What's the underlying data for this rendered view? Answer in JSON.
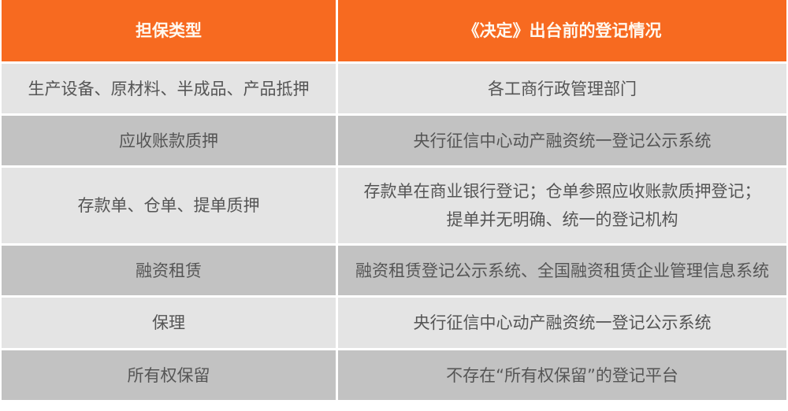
{
  "header": {
    "col1": "担保类型",
    "col2": "《决定》出台前的登记情况"
  },
  "colors": {
    "header": "#f76a20",
    "row_light": "#e4e4e4",
    "row_dark": "#c2c2c2"
  },
  "rows": [
    {
      "type": "生产设备、原材料、半成品、产品抵押",
      "registry": "各工商行政管理部门"
    },
    {
      "type": "应收账款质押",
      "registry": "央行征信中心动产融资统一登记公示系统"
    },
    {
      "type": "存款单、仓单、提单质押",
      "registry": "存款单在商业银行登记；仓单参照应收账款质押登记；",
      "registry2": "提单并无明确、统一的登记机构"
    },
    {
      "type": "融资租赁",
      "registry": "融资租赁登记公示系统、全国融资租赁企业管理信息系统"
    },
    {
      "type": "保理",
      "registry": "央行征信中心动产融资统一登记公示系统"
    },
    {
      "type": "所有权保留",
      "registry": "不存在“所有权保留”的登记平台"
    }
  ]
}
